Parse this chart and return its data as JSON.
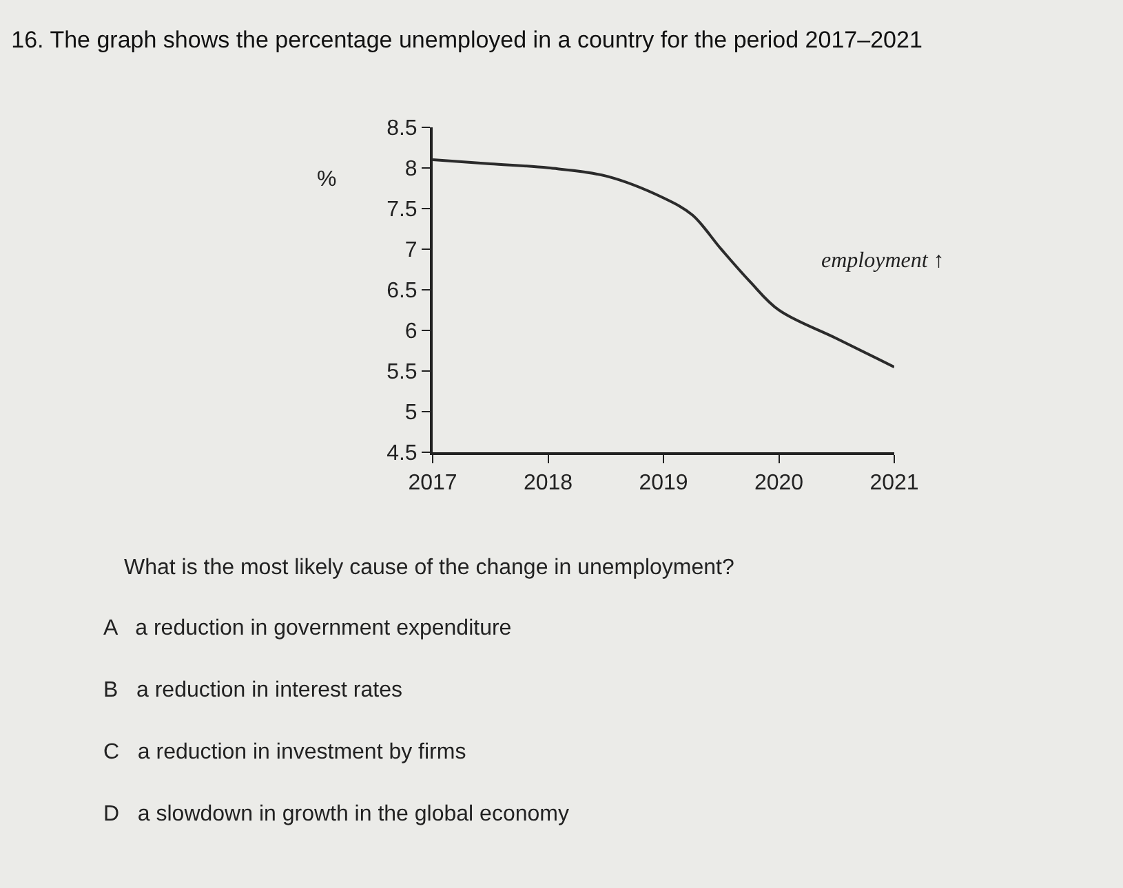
{
  "chart_data": {
    "type": "line",
    "title": "16. The graph shows the percentage unemployed in a country for the period 2017–2021",
    "ylabel": "%",
    "x": [
      2017,
      2017.5,
      2018,
      2018.5,
      2019,
      2019.25,
      2019.5,
      2019.75,
      2020,
      2020.5,
      2021
    ],
    "series": [
      {
        "color": "#2b2b2b",
        "values": [
          8.1,
          8.05,
          8.0,
          7.9,
          7.63,
          7.42,
          7.0,
          6.6,
          6.25,
          5.9,
          5.55
        ]
      }
    ],
    "xlim": [
      2017,
      2021
    ],
    "xticks": [
      2017,
      2018,
      2019,
      2020,
      2021
    ],
    "ylim": [
      4.5,
      8.5
    ],
    "yticks": [
      4.5,
      5,
      5.5,
      6,
      6.5,
      7,
      7.5,
      8,
      8.5
    ],
    "grid": false,
    "marker": "none",
    "line_style": "solid",
    "annotations": [
      "employment ↑",
      "What is the most likely cause of the change in unemployment?",
      "A   a reduction in government expenditure",
      "B   a reduction in interest rates",
      "C   a reduction in investment by firms",
      "D   a slowdown in growth in the global economy"
    ]
  }
}
